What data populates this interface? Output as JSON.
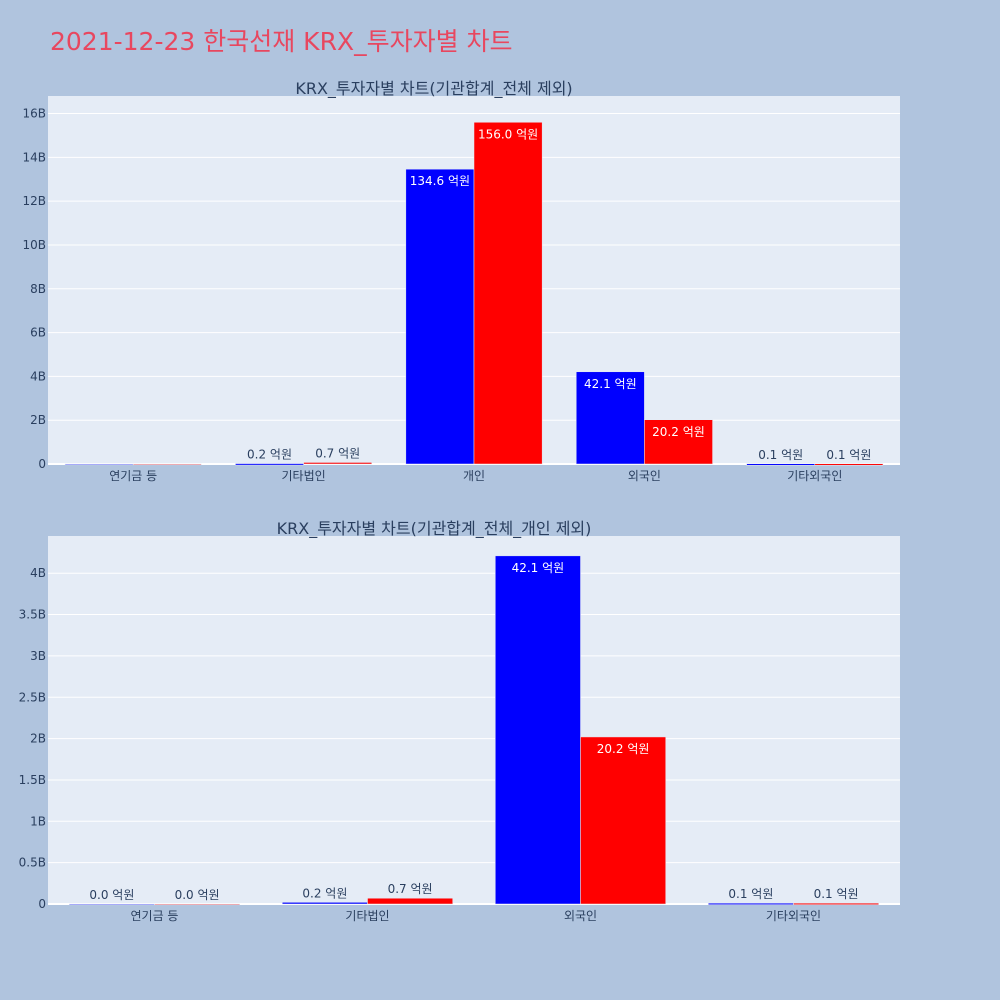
{
  "title": "2021-12-23 한국선재 KRX_투자자별 차트",
  "colors": {
    "background": "#b0c4de",
    "plot_background": "#e5ecf6",
    "title": "#e8475f",
    "buy": "#0000ff",
    "sell": "#ff0000"
  },
  "chart_data": [
    {
      "type": "bar",
      "title": "KRX_투자자별 차트(기관합계_전체 제외)",
      "categories": [
        "연기금 등",
        "기타법인",
        "개인",
        "외국인",
        "기타외국인"
      ],
      "series": [
        {
          "color": "#0000ff",
          "values": [
            0,
            20000000,
            13460000000,
            4210000000,
            10000000
          ],
          "labels": [
            "",
            "0.2 억원",
            "134.6 억원",
            "42.1 억원",
            "0.1 억원"
          ]
        },
        {
          "color": "#ff0000",
          "values": [
            0,
            70000000,
            15600000000,
            2020000000,
            10000000
          ],
          "labels": [
            "",
            "0.7 억원",
            "156.0 억원",
            "20.2 억원",
            "0.1 억원"
          ]
        }
      ],
      "ylim": [
        0,
        16800000000
      ],
      "yticks": [
        0,
        2000000000,
        4000000000,
        6000000000,
        8000000000,
        10000000000,
        12000000000,
        14000000000,
        16000000000
      ],
      "ytick_labels": [
        "0",
        "2B",
        "4B",
        "6B",
        "8B",
        "10B",
        "12B",
        "14B",
        "16B"
      ],
      "grid": true
    },
    {
      "type": "bar",
      "title": "KRX_투자자별 차트(기관합계_전체_개인 제외)",
      "categories": [
        "연기금 등",
        "기타법인",
        "외국인",
        "기타외국인"
      ],
      "series": [
        {
          "color": "#0000ff",
          "values": [
            0,
            20000000,
            4210000000,
            10000000
          ],
          "labels": [
            "0.0 억원",
            "0.2 억원",
            "42.1 억원",
            "0.1 억원"
          ]
        },
        {
          "color": "#ff0000",
          "values": [
            0,
            70000000,
            2020000000,
            10000000
          ],
          "labels": [
            "0.0 억원",
            "0.7 억원",
            "20.2 억원",
            "0.1 억원"
          ]
        }
      ],
      "ylim": [
        0,
        4450000000
      ],
      "yticks": [
        0,
        500000000,
        1000000000,
        1500000000,
        2000000000,
        2500000000,
        3000000000,
        3500000000,
        4000000000
      ],
      "ytick_labels": [
        "0",
        "0.5B",
        "1B",
        "1.5B",
        "2B",
        "2.5B",
        "3B",
        "3.5B",
        "4B"
      ],
      "grid": true
    }
  ]
}
